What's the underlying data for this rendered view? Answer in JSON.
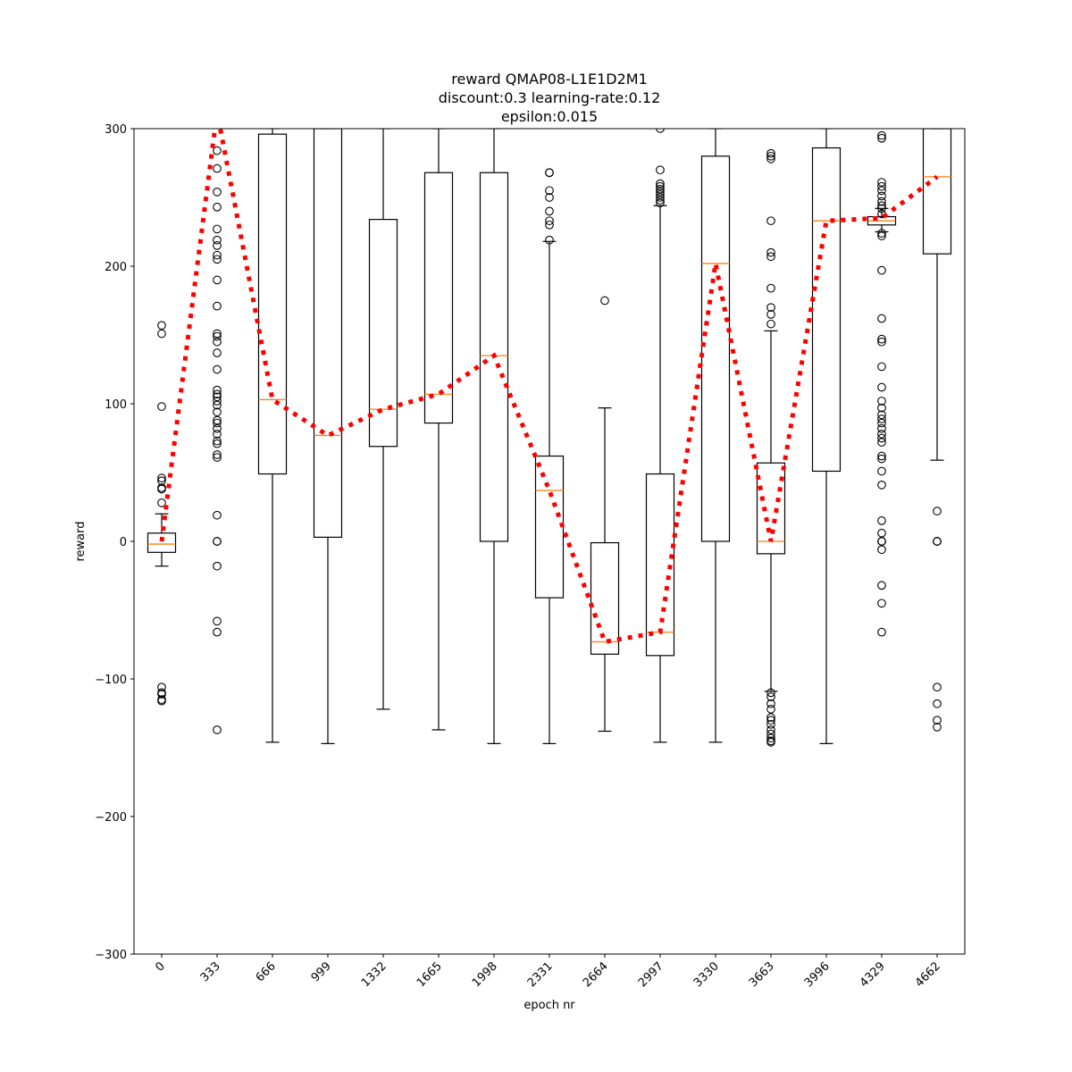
{
  "chart_data": {
    "type": "box",
    "title_lines": [
      "reward QMAP08-L1E1D2M1",
      "discount:0.3 learning-rate:0.12",
      "epsilon:0.015"
    ],
    "xlabel": "epoch nr",
    "ylabel": "reward",
    "ylim": [
      -300,
      300
    ],
    "yticks": [
      -300,
      -200,
      -100,
      0,
      100,
      200,
      300
    ],
    "categories": [
      "0",
      "333",
      "666",
      "999",
      "1332",
      "1665",
      "1998",
      "2331",
      "2664",
      "2997",
      "3330",
      "3663",
      "3996",
      "4329",
      "4662"
    ],
    "boxes": [
      {
        "whisker_low": -18,
        "q1": -8,
        "median": -2,
        "q3": 6,
        "whisker_high": 20,
        "outliers": [
          157,
          151,
          98,
          46,
          44,
          39,
          38,
          28,
          -106,
          -110,
          -111,
          -115,
          -116
        ]
      },
      {
        "whisker_low": null,
        "q1": null,
        "median": null,
        "q3": null,
        "whisker_high": null,
        "outliers": [
          284,
          271,
          254,
          243,
          227,
          219,
          215,
          208,
          205,
          190,
          171,
          151,
          149,
          145,
          137,
          125,
          110,
          107,
          105,
          102,
          99,
          94,
          88,
          86,
          82,
          78,
          73,
          71,
          63,
          61,
          19,
          0,
          0,
          -18,
          -58,
          -66,
          -137
        ]
      },
      {
        "whisker_low": -146,
        "q1": 49,
        "median": 103,
        "q3": 296,
        "whisker_high": 300,
        "outliers": []
      },
      {
        "whisker_low": -147,
        "q1": 3,
        "median": 77,
        "q3": 300,
        "whisker_high": 300,
        "outliers": []
      },
      {
        "whisker_low": -122,
        "q1": 69,
        "median": 96,
        "q3": 234,
        "whisker_high": 300,
        "outliers": []
      },
      {
        "whisker_low": -137,
        "q1": 86,
        "median": 107,
        "q3": 268,
        "whisker_high": 300,
        "outliers": []
      },
      {
        "whisker_low": -147,
        "q1": 0,
        "median": 135,
        "q3": 268,
        "whisker_high": 300,
        "outliers": []
      },
      {
        "whisker_low": -147,
        "q1": -41,
        "median": 37,
        "q3": 62,
        "whisker_high": 218,
        "outliers": [
          268,
          268,
          255,
          250,
          240,
          233,
          230,
          219
        ]
      },
      {
        "whisker_low": -138,
        "q1": -82,
        "median": -73,
        "q3": -1,
        "whisker_high": 97,
        "outliers": [
          175
        ]
      },
      {
        "whisker_low": -146,
        "q1": -83,
        "median": -66,
        "q3": 49,
        "whisker_high": 244,
        "outliers": [
          300,
          270,
          260,
          258,
          256,
          254,
          252,
          250,
          248,
          246
        ]
      },
      {
        "whisker_low": -146,
        "q1": 0,
        "median": 202,
        "q3": 280,
        "whisker_high": 300,
        "outliers": []
      },
      {
        "whisker_low": -109,
        "q1": -9,
        "median": 0,
        "q3": 57,
        "whisker_high": 153,
        "outliers": [
          282,
          280,
          278,
          233,
          210,
          207,
          184,
          170,
          165,
          158,
          -110,
          -113,
          -118,
          -122,
          -128,
          -130,
          -133,
          -137,
          -140,
          -143,
          -145,
          -146
        ]
      },
      {
        "whisker_low": -147,
        "q1": 51,
        "median": 233,
        "q3": 286,
        "whisker_high": 300,
        "outliers": []
      },
      {
        "whisker_low": 225,
        "q1": 230,
        "median": 233,
        "q3": 236,
        "whisker_high": 242,
        "outliers": [
          295,
          293,
          261,
          258,
          255,
          251,
          247,
          244,
          242,
          238,
          224,
          222,
          197,
          162,
          147,
          145,
          127,
          112,
          102,
          97,
          92,
          89,
          86,
          82,
          78,
          75,
          72,
          62,
          60,
          51,
          41,
          15,
          6,
          0,
          0,
          0,
          -6,
          -32,
          -45,
          -66
        ]
      },
      {
        "whisker_low": 59,
        "q1": 209,
        "median": 265,
        "q3": 300,
        "whisker_high": 300,
        "outliers": [
          22,
          0,
          0,
          0,
          -106,
          -118,
          -130,
          -135
        ]
      }
    ],
    "mean_line": {
      "color": "#ff0000",
      "style": "dotted",
      "values": [
        0,
        312,
        103,
        77,
        96,
        107,
        135,
        37,
        -73,
        -66,
        202,
        0,
        233,
        235,
        265
      ]
    },
    "colors": {
      "box": "#000000",
      "median": "#ff7f0e",
      "mean_line": "#ff0000"
    }
  }
}
